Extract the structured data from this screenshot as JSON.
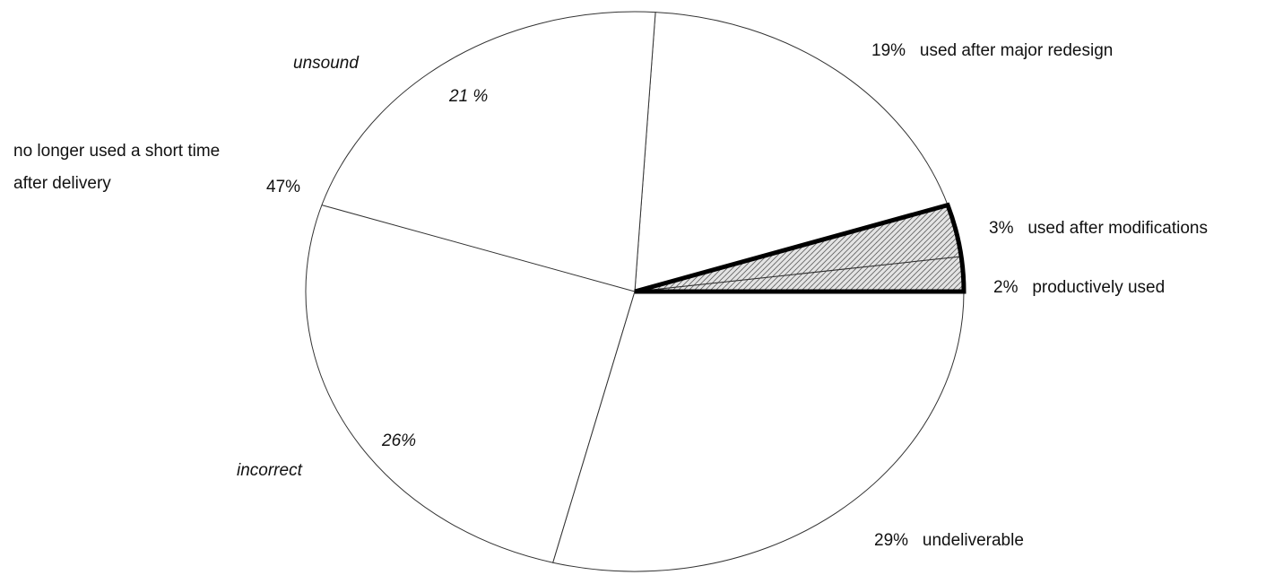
{
  "chart_data": {
    "type": "pie",
    "title": "",
    "slices": [
      {
        "label": "productively used",
        "value": 2,
        "value_text": "2%",
        "fill": "#e2e2e2",
        "hatched": true
      },
      {
        "label": "used after modifications",
        "value": 3,
        "value_text": "3%",
        "fill": "#e2e2e2",
        "hatched": true
      },
      {
        "label": "used after major redesign",
        "value": 19,
        "value_text": "19%",
        "fill": "#ffffff",
        "hatched": false
      },
      {
        "label": "no longer used a short time after delivery",
        "value": 47,
        "value_text": "47%",
        "fill": "#ffffff",
        "hatched": false
      },
      {
        "label": "undeliverable",
        "value": 29,
        "value_text": "29%",
        "fill": "#ffffff",
        "hatched": false
      }
    ],
    "sub_breakdown": [
      {
        "label": "unsound",
        "value": 21,
        "value_text": "21 %"
      },
      {
        "label": "incorrect",
        "value": 26,
        "value_text": "26%"
      }
    ],
    "text_labels": {
      "top_right": {
        "value": "19%",
        "text": "used after major redesign"
      },
      "right_mid": {
        "value": "3%",
        "text": "used after modifications"
      },
      "right_low": {
        "value": "2%",
        "text": "productively used"
      },
      "bottom_right": {
        "value": "29%",
        "text": "undeliverable"
      },
      "left_line1": "no longer used a short time",
      "left_line2": "after delivery",
      "left_value": "47%",
      "unsound": "unsound",
      "unsound_value": "21 %",
      "incorrect": "incorrect",
      "incorrect_value": "26%"
    },
    "colors": {
      "outline": "#333333",
      "emphasis_outline": "#000000",
      "hatch": "#555555"
    }
  }
}
